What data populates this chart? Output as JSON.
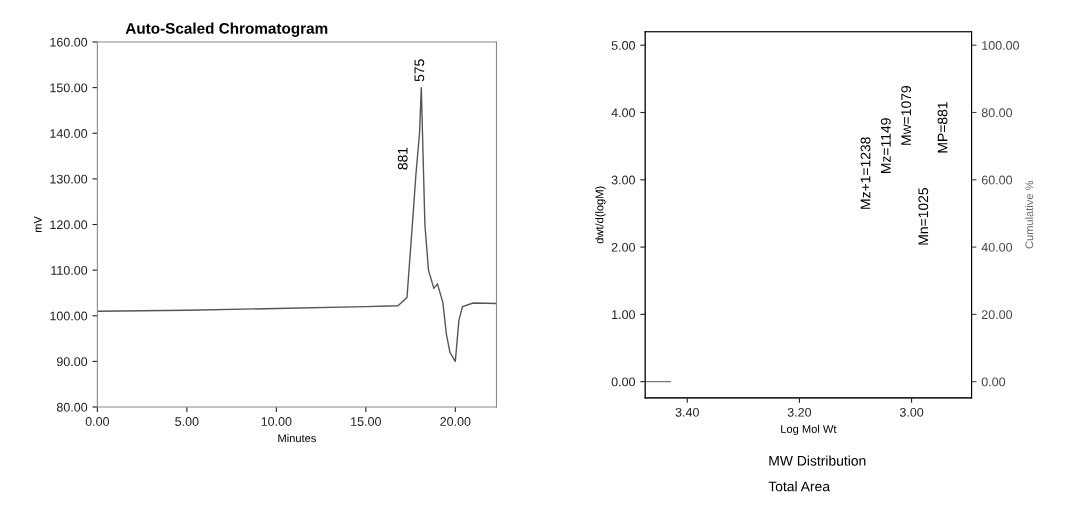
{
  "chart_data": [
    {
      "type": "line",
      "title": "Auto-Scaled Chromatogram",
      "xlabel": "Minutes",
      "ylabel": "mV",
      "series": [
        {
          "color": "#555555",
          "x": [
            0,
            5,
            10,
            15,
            16.8,
            17.3,
            17.6,
            17.8,
            18.0,
            18.1,
            18.3,
            18.5,
            18.8,
            19.0,
            19.3,
            19.5,
            19.7,
            20.0,
            20.2,
            20.4,
            21,
            22.3
          ],
          "values": [
            101,
            101.2,
            101.6,
            102,
            102.2,
            104,
            120,
            131,
            140,
            150,
            120,
            110,
            106,
            107,
            103,
            96,
            92,
            90,
            99,
            102,
            102.8,
            102.7
          ]
        }
      ],
      "xlim": [
        0,
        22.3
      ],
      "ylim": [
        80,
        160
      ],
      "xticks": [
        {
          "value": 0,
          "label": "0.00"
        },
        {
          "value": 5,
          "label": "5.00"
        },
        {
          "value": 10,
          "label": "10.00"
        },
        {
          "value": 15,
          "label": "15.00"
        },
        {
          "value": 20,
          "label": "20.00"
        }
      ],
      "yticks": [
        {
          "value": 80,
          "label": "80.00"
        },
        {
          "value": 90,
          "label": "90.00"
        },
        {
          "value": 100,
          "label": "100.00"
        },
        {
          "value": 110,
          "label": "110.00"
        },
        {
          "value": 120,
          "label": "120.00"
        },
        {
          "value": 130,
          "label": "130.00"
        },
        {
          "value": 140,
          "label": "140.00"
        },
        {
          "value": 150,
          "label": "150.00"
        },
        {
          "value": 160,
          "label": "160.00"
        }
      ],
      "annotations": [
        "575",
        {
          "text": "881",
          "x": 17.8,
          "y": 131
        }
      ],
      "grid": false,
      "legend": false
    },
    {
      "type": "line",
      "xlabel": "Log Mol Wt",
      "ylabel": "dwt/d(logM)",
      "y2label": "Cumulative %",
      "series": [
        {
          "color": "#777777",
          "x": [
            3.475,
            3.43
          ],
          "values": [
            0,
            0
          ]
        }
      ],
      "xlim": [
        3.475,
        2.893
      ],
      "ylim": [
        -0.24,
        5.2
      ],
      "y2lim": [
        -4.8,
        104
      ],
      "xticks": [
        {
          "value": 3.4,
          "label": "3.40"
        },
        {
          "value": 3.2,
          "label": "3.20"
        },
        {
          "value": 3.0,
          "label": "3.00"
        }
      ],
      "yticks": [
        {
          "value": 0,
          "label": "0.00"
        },
        {
          "value": 1,
          "label": "1.00"
        },
        {
          "value": 2,
          "label": "2.00"
        },
        {
          "value": 3,
          "label": "3.00"
        },
        {
          "value": 4,
          "label": "4.00"
        },
        {
          "value": 5,
          "label": "5.00"
        }
      ],
      "y2ticks": [
        {
          "value": 0,
          "label": "0.00"
        },
        {
          "value": 20,
          "label": "20.00"
        },
        {
          "value": 40,
          "label": "40.00"
        },
        {
          "value": 60,
          "label": "60.00"
        },
        {
          "value": 80,
          "label": "80.00"
        },
        {
          "value": 100,
          "label": "100.00"
        }
      ],
      "annotations": [
        "Mz+1=1238",
        "Mz=1149",
        "Mw=1079",
        "Mn=1025",
        "MP=881",
        "MW Distribution",
        "Total Area"
      ],
      "grid": false,
      "legend": false
    }
  ]
}
